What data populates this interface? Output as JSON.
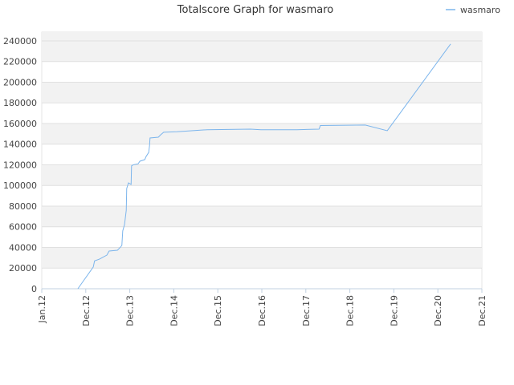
{
  "chart_data": {
    "type": "line",
    "title": "Totalscore Graph for wasmaro",
    "x": [
      2012.82,
      2013.17,
      2013.2,
      2013.31,
      2013.48,
      2013.53,
      2013.72,
      2013.79,
      2013.82,
      2013.84,
      2013.88,
      2013.92,
      2013.93,
      2013.97,
      2014.03,
      2014.04,
      2014.08,
      2014.19,
      2014.23,
      2014.34,
      2014.37,
      2014.43,
      2014.45,
      2014.46,
      2014.65,
      2014.7,
      2014.77,
      2015.07,
      2015.76,
      2016.74,
      2016.98,
      2017.8,
      2018.3,
      2018.33,
      2019.35,
      2019.85,
      2021.29
    ],
    "series": [
      {
        "name": "wasmaro",
        "color": "#7cb5ec",
        "values": [
          0,
          21000,
          27000,
          28700,
          32600,
          36500,
          37300,
          40400,
          42000,
          56000,
          62000,
          76000,
          97000,
          102500,
          101000,
          119000,
          120000,
          121000,
          123500,
          125000,
          128000,
          132000,
          139000,
          146000,
          146800,
          149000,
          151500,
          152000,
          154000,
          154500,
          154000,
          154000,
          154500,
          158000,
          158500,
          153000,
          237000
        ]
      }
    ],
    "xlim": [
      2012,
      2022
    ],
    "xticks": [
      {
        "value": 2012,
        "label": "Jan.12"
      },
      {
        "value": 2013,
        "label": "Dec.12"
      },
      {
        "value": 2014,
        "label": "Dec.13"
      },
      {
        "value": 2015,
        "label": "Dec.14"
      },
      {
        "value": 2016,
        "label": "Dec.15"
      },
      {
        "value": 2017,
        "label": "Dec.16"
      },
      {
        "value": 2018,
        "label": "Dec.17"
      },
      {
        "value": 2019,
        "label": "Dec.18"
      },
      {
        "value": 2020,
        "label": "Dec.19"
      },
      {
        "value": 2021,
        "label": "Dec.20"
      },
      {
        "value": 2022,
        "label": "Dec.21"
      }
    ],
    "ylim": [
      0,
      248500
    ],
    "yticks": [
      0,
      20000,
      40000,
      60000,
      80000,
      100000,
      120000,
      140000,
      160000,
      180000,
      200000,
      220000,
      240000
    ],
    "grid": true,
    "legend": "top-right"
  }
}
